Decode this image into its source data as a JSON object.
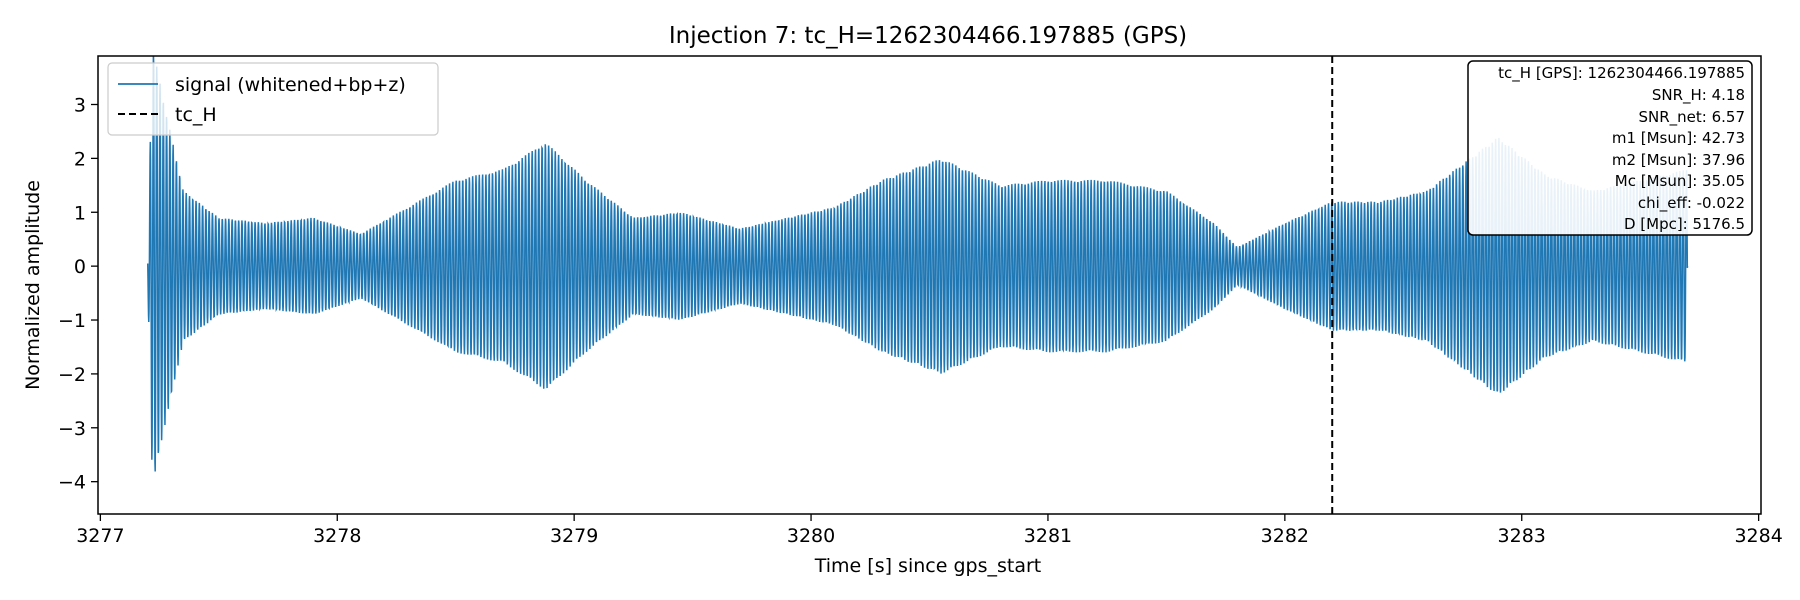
{
  "chart_data": {
    "type": "line",
    "title": "Injection 7: tc_H=1262304466.197885 (GPS)",
    "xlabel": "Time [s] since gps_start",
    "ylabel": "Normalized amplitude",
    "xlim": [
      3276.99,
      3284.01
    ],
    "ylim": [
      -4.6,
      3.9
    ],
    "xticks": [
      3277,
      3278,
      3279,
      3280,
      3281,
      3282,
      3283,
      3284
    ],
    "xtick_labels": [
      "3277",
      "3278",
      "3279",
      "3280",
      "3281",
      "3282",
      "3283",
      "3284"
    ],
    "yticks": [
      3,
      2,
      1,
      0,
      -1,
      -2,
      -3,
      -4
    ],
    "ytick_labels": [
      "3",
      "2",
      "1",
      "0",
      "−1",
      "−2",
      "−3",
      "−4"
    ],
    "grid": false,
    "legend_position": "top-left",
    "series": [
      {
        "name": "signal (whitened+bp+z)",
        "color": "#1f77b4",
        "x_start": 3277.2,
        "x_end": 3283.7,
        "carrier_freq_hz": 72,
        "envelope_t": [
          3277.2,
          3277.22,
          3277.27,
          3277.35,
          3277.5,
          3277.7,
          3277.9,
          3278.1,
          3278.3,
          3278.5,
          3278.7,
          3278.88,
          3279.05,
          3279.25,
          3279.45,
          3279.7,
          3279.9,
          3280.1,
          3280.3,
          3280.55,
          3280.8,
          3281.0,
          3281.25,
          3281.5,
          3281.7,
          3281.8,
          3282.0,
          3282.2,
          3282.4,
          3282.6,
          3282.9,
          3283.1,
          3283.3,
          3283.5,
          3283.7
        ],
        "envelope_amp": [
          0.3,
          4.1,
          3.0,
          1.4,
          0.9,
          0.8,
          0.9,
          0.6,
          1.1,
          1.6,
          1.8,
          2.3,
          1.6,
          0.9,
          1.0,
          0.7,
          0.9,
          1.1,
          1.6,
          2.0,
          1.5,
          1.6,
          1.6,
          1.4,
          0.8,
          0.35,
          0.8,
          1.2,
          1.2,
          1.4,
          2.4,
          1.7,
          1.4,
          1.6,
          1.8
        ]
      }
    ],
    "vline": {
      "name": "tc_H",
      "x": 3282.2,
      "style": "dashed",
      "color": "#000000"
    },
    "info_box": [
      "tc_H [GPS]: 1262304466.197885",
      "SNR_H: 4.18",
      "SNR_net: 6.57",
      "m1 [Msun]: 42.73",
      "m2 [Msun]: 37.96",
      "Mc [Msun]: 35.05",
      "chi_eff: -0.022",
      "D [Mpc]: 5176.5"
    ]
  }
}
